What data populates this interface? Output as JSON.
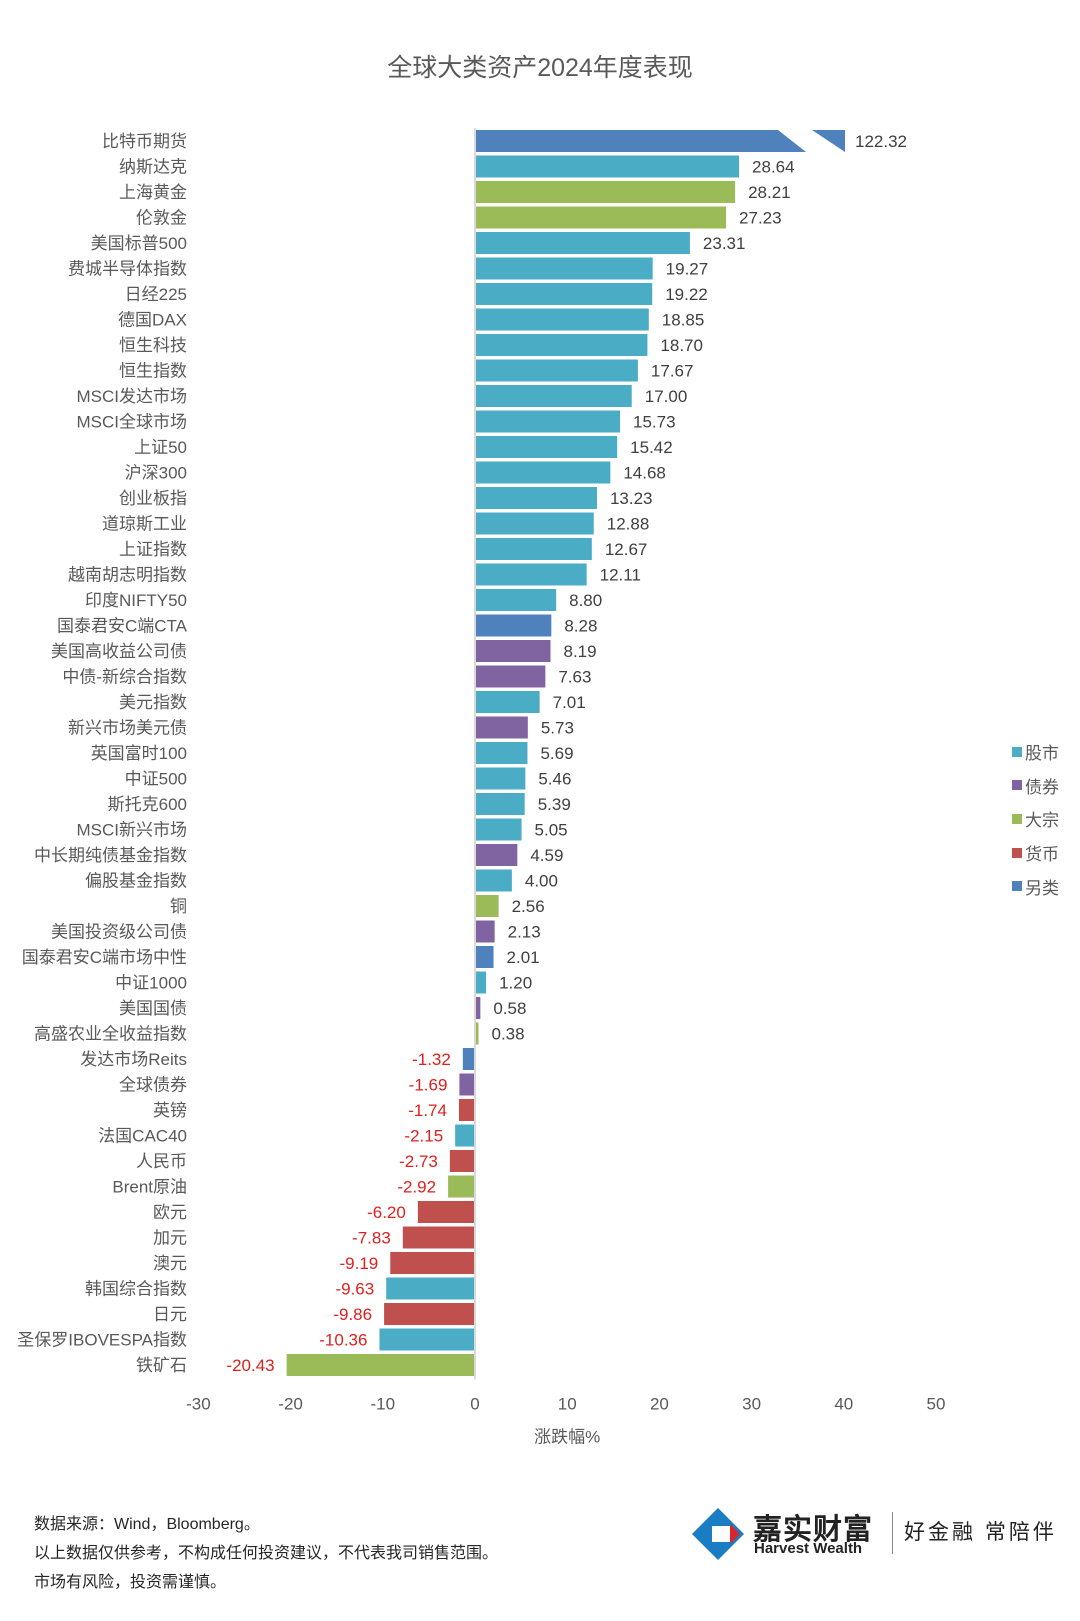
{
  "chart_data": {
    "type": "bar",
    "orientation": "horizontal",
    "title": "全球大类资产2024年度表现",
    "xlabel": "涨跌幅%",
    "ylabel": "",
    "xlim": [
      -30,
      50
    ],
    "xticks": [
      -30,
      -20,
      -10,
      0,
      10,
      20,
      30,
      40,
      50
    ],
    "grid": false,
    "legend_position": "right",
    "axis_break": {
      "series_index": 0,
      "note": "bar truncated with break marks"
    },
    "legend": [
      {
        "key": "stock",
        "label": "股市",
        "color": "#4bacc6"
      },
      {
        "key": "bond",
        "label": "债券",
        "color": "#8064a2"
      },
      {
        "key": "commodity",
        "label": "大宗",
        "color": "#9bbb59"
      },
      {
        "key": "currency",
        "label": "货币",
        "color": "#c0504d"
      },
      {
        "key": "alternative",
        "label": "另类",
        "color": "#4f81bd"
      }
    ],
    "categories": [
      "比特币期货",
      "纳斯达克",
      "上海黄金",
      "伦敦金",
      "美国标普500",
      "费城半导体指数",
      "日经225",
      "德国DAX",
      "恒生科技",
      "恒生指数",
      "MSCI发达市场",
      "MSCI全球市场",
      "上证50",
      "沪深300",
      "创业板指",
      "道琼斯工业",
      "上证指数",
      "越南胡志明指数",
      "印度NIFTY50",
      "国泰君安C端CTA",
      "美国高收益公司债",
      "中债-新综合指数",
      "美元指数",
      "新兴市场美元债",
      "英国富时100",
      "中证500",
      "斯托克600",
      "MSCI新兴市场",
      "中长期纯债基金指数",
      "偏股基金指数",
      "铜",
      "美国投资级公司债",
      "国泰君安C端市场中性",
      "中证1000",
      "美国国债",
      "高盛农业全收益指数",
      "发达市场Reits",
      "全球债券",
      "英镑",
      "法国CAC40",
      "人民币",
      "Brent原油",
      "欧元",
      "加元",
      "澳元",
      "韩国综合指数",
      "日元",
      "圣保罗IBOVESPA指数",
      "铁矿石"
    ],
    "values": [
      122.32,
      28.64,
      28.21,
      27.23,
      23.31,
      19.27,
      19.22,
      18.85,
      18.7,
      17.67,
      17.0,
      15.73,
      15.42,
      14.68,
      13.23,
      12.88,
      12.67,
      12.11,
      8.8,
      8.28,
      8.19,
      7.63,
      7.01,
      5.73,
      5.69,
      5.46,
      5.39,
      5.05,
      4.59,
      4.0,
      2.56,
      2.13,
      2.01,
      1.2,
      0.58,
      0.38,
      -1.32,
      -1.69,
      -1.74,
      -2.15,
      -2.73,
      -2.92,
      -6.2,
      -7.83,
      -9.19,
      -9.63,
      -9.86,
      -10.36,
      -20.43
    ],
    "value_labels": [
      "122.32",
      "28.64",
      "28.21",
      "27.23",
      "23.31",
      "19.27",
      "19.22",
      "18.85",
      "18.70",
      "17.67",
      "17.00",
      "15.73",
      "15.42",
      "14.68",
      "13.23",
      "12.88",
      "12.67",
      "12.11",
      "8.80",
      "8.28",
      "8.19",
      "7.63",
      "7.01",
      "5.73",
      "5.69",
      "5.46",
      "5.39",
      "5.05",
      "4.59",
      "4.00",
      "2.56",
      "2.13",
      "2.01",
      "1.20",
      "0.58",
      "0.38",
      "-1.32",
      "-1.69",
      "-1.74",
      "-2.15",
      "-2.73",
      "-2.92",
      "-6.20",
      "-7.83",
      "-9.19",
      "-9.63",
      "-9.86",
      "-10.36",
      "-20.43"
    ],
    "groups": [
      "alternative",
      "stock",
      "commodity",
      "commodity",
      "stock",
      "stock",
      "stock",
      "stock",
      "stock",
      "stock",
      "stock",
      "stock",
      "stock",
      "stock",
      "stock",
      "stock",
      "stock",
      "stock",
      "stock",
      "alternative",
      "bond",
      "bond",
      "stock",
      "bond",
      "stock",
      "stock",
      "stock",
      "stock",
      "bond",
      "stock",
      "commodity",
      "bond",
      "alternative",
      "stock",
      "bond",
      "commodity",
      "alternative",
      "bond",
      "currency",
      "stock",
      "currency",
      "commodity",
      "currency",
      "currency",
      "currency",
      "stock",
      "currency",
      "stock",
      "commodity"
    ],
    "negative_label_color": "#e0201e"
  },
  "footer": {
    "lines": [
      "数据来源：Wind，Bloomberg。",
      "以上数据仅供参考，不构成任何投资建议，不代表我司销售范围。",
      "市场有风险，投资需谨慎。"
    ]
  },
  "brand": {
    "name_cn": "嘉实财富",
    "name_en": "Harvest Wealth",
    "slogan": "好金融 常陪伴",
    "colors": {
      "blue": "#1a7dc4",
      "red": "#d7262c"
    }
  }
}
